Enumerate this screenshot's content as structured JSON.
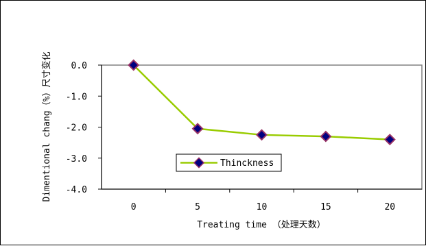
{
  "chart_data": {
    "type": "line",
    "categories": [
      "0",
      "5",
      "10",
      "15",
      "20"
    ],
    "series": [
      {
        "name": "Thinckness",
        "values": [
          0.0,
          -2.05,
          -2.25,
          -2.3,
          -2.4
        ]
      }
    ],
    "title": "",
    "xlabel": "Treating time （处理天数）",
    "ylabel": "Dimentional chang（%）尺寸变化",
    "ylim": [
      -4.0,
      0.0
    ],
    "yticks": [
      "0.0",
      "-1.0",
      "-2.0",
      "-3.0",
      "-4.0"
    ],
    "grid": false,
    "legend": "inside-bottom-left",
    "colors": {
      "line": "#99cc00",
      "marker_fill": "#000080",
      "marker_edge": "#993366"
    }
  }
}
